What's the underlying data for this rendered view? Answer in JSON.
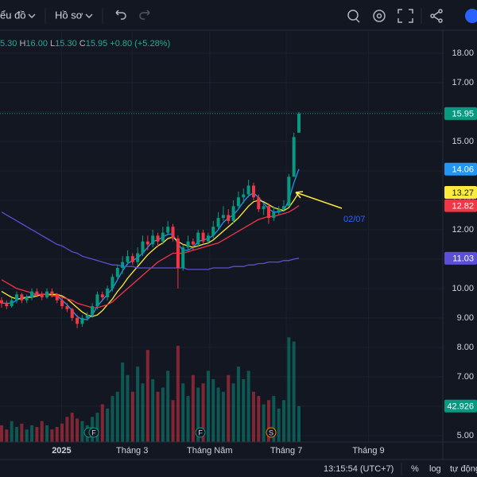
{
  "toolbar": {
    "chart": "ểu đồ",
    "profile": "Hồ sơ"
  },
  "legend": [
    "5.30",
    "H",
    "16.00",
    "L",
    "15.30",
    "C",
    "15.95",
    "+0.80 (+5.28%)"
  ],
  "footer": {
    "time": "13:15:54 (UTC+7)",
    "percent": "%",
    "log": "log",
    "auto": "tự động"
  },
  "chart_data": {
    "type": "candlestick",
    "ylim": [
      4.78,
      18.73
    ],
    "yticks": [
      {
        "value": 18,
        "label": "18.00"
      },
      {
        "value": 17,
        "label": "17.00"
      },
      {
        "value": 16,
        "label": "16.00"
      },
      {
        "value": 15,
        "label": "15.00"
      },
      {
        "value": 14,
        "label": "14.00"
      },
      {
        "value": 13,
        "label": "13.00"
      },
      {
        "value": 12,
        "label": "12.00"
      },
      {
        "value": 11,
        "label": "11.00"
      },
      {
        "value": 10,
        "label": "10.00"
      },
      {
        "value": 9,
        "label": "9.00"
      },
      {
        "value": 8,
        "label": "8.00"
      },
      {
        "value": 7,
        "label": "7.00"
      },
      {
        "value": 6,
        "label": "6.00"
      },
      {
        "value": 5,
        "label": "5.00"
      }
    ],
    "xticks": [
      {
        "value": 11.9,
        "label": "2025"
      },
      {
        "value": 25.9,
        "label": "Tháng 3"
      },
      {
        "value": 41.3,
        "label": "Tháng Năm"
      },
      {
        "value": 56.5,
        "label": "Tháng 7"
      },
      {
        "value": 72.8,
        "label": "Tháng 9"
      }
    ],
    "grid": true,
    "up_color": "#089981",
    "down_color": "#f23645",
    "candles": [
      [
        9.6,
        9.7,
        9.35,
        9.5
      ],
      [
        9.5,
        9.6,
        9.3,
        9.4
      ],
      [
        9.4,
        9.7,
        9.35,
        9.6
      ],
      [
        9.6,
        9.9,
        9.5,
        9.8
      ],
      [
        9.8,
        9.85,
        9.5,
        9.6
      ],
      [
        9.6,
        9.8,
        9.5,
        9.7
      ],
      [
        9.7,
        10.0,
        9.6,
        9.9
      ],
      [
        9.9,
        10.0,
        9.7,
        9.8
      ],
      [
        9.8,
        9.9,
        9.6,
        9.7
      ],
      [
        9.7,
        10.0,
        9.65,
        9.9
      ],
      [
        9.9,
        10.0,
        9.7,
        9.8
      ],
      [
        9.8,
        9.85,
        9.5,
        9.6
      ],
      [
        9.6,
        9.7,
        9.3,
        9.4
      ],
      [
        9.4,
        9.5,
        9.2,
        9.3
      ],
      [
        9.3,
        9.35,
        8.9,
        9.0
      ],
      [
        9.0,
        9.1,
        8.65,
        8.8
      ],
      [
        8.8,
        9.1,
        8.7,
        9.0
      ],
      [
        9.0,
        9.2,
        8.9,
        9.1
      ],
      [
        9.1,
        9.5,
        9.0,
        9.4
      ],
      [
        9.4,
        9.9,
        9.3,
        9.8
      ],
      [
        9.8,
        9.9,
        9.6,
        9.7
      ],
      [
        9.7,
        10.1,
        9.6,
        10.0
      ],
      [
        10.0,
        10.5,
        9.9,
        10.4
      ],
      [
        10.4,
        10.8,
        10.3,
        10.7
      ],
      [
        10.7,
        11.1,
        10.5,
        10.9
      ],
      [
        10.9,
        11.3,
        10.8,
        11.1
      ],
      [
        11.1,
        11.2,
        10.8,
        10.9
      ],
      [
        10.9,
        11.4,
        10.8,
        11.2
      ],
      [
        11.2,
        11.8,
        11.1,
        11.6
      ],
      [
        11.6,
        11.8,
        11.3,
        11.5
      ],
      [
        11.5,
        12.0,
        11.4,
        11.8
      ],
      [
        11.8,
        11.9,
        11.4,
        11.6
      ],
      [
        11.6,
        12.1,
        11.5,
        11.9
      ],
      [
        11.9,
        12.3,
        11.8,
        12.1
      ],
      [
        12.1,
        12.2,
        11.6,
        11.7
      ],
      [
        11.7,
        11.8,
        10.0,
        10.7
      ],
      [
        10.7,
        11.5,
        10.6,
        11.4
      ],
      [
        11.4,
        11.8,
        11.3,
        11.6
      ],
      [
        11.6,
        11.7,
        11.3,
        11.5
      ],
      [
        11.5,
        12.0,
        11.4,
        11.9
      ],
      [
        11.9,
        12.0,
        11.5,
        11.6
      ],
      [
        11.6,
        11.9,
        11.5,
        11.8
      ],
      [
        11.8,
        12.3,
        11.7,
        12.1
      ],
      [
        12.1,
        12.6,
        12.0,
        12.4
      ],
      [
        12.4,
        12.8,
        12.3,
        12.5
      ],
      [
        12.5,
        12.7,
        12.2,
        12.3
      ],
      [
        12.3,
        13.0,
        12.2,
        12.8
      ],
      [
        12.8,
        13.3,
        12.7,
        13.1
      ],
      [
        13.1,
        13.4,
        12.9,
        13.2
      ],
      [
        13.2,
        13.7,
        13.1,
        13.5
      ],
      [
        13.5,
        13.6,
        13.0,
        13.1
      ],
      [
        13.1,
        13.2,
        12.6,
        12.7
      ],
      [
        12.7,
        12.9,
        12.5,
        12.8
      ],
      [
        12.8,
        12.9,
        12.2,
        12.4
      ],
      [
        12.4,
        12.8,
        12.3,
        12.6
      ],
      [
        12.6,
        12.8,
        12.5,
        12.7
      ],
      [
        12.7,
        13.0,
        12.6,
        12.8
      ],
      [
        12.8,
        13.9,
        12.8,
        13.8
      ],
      [
        13.8,
        15.3,
        13.8,
        15.15
      ],
      [
        15.3,
        16.0,
        15.3,
        15.95
      ]
    ],
    "volume": {
      "ylim": [
        0,
        150
      ],
      "color": "#089981",
      "values": [
        20,
        15,
        25,
        18,
        22,
        15,
        20,
        18,
        25,
        20,
        15,
        18,
        22,
        30,
        35,
        28,
        25,
        20,
        30,
        35,
        45,
        40,
        55,
        60,
        95,
        80,
        60,
        90,
        70,
        110,
        75,
        60,
        65,
        85,
        50,
        115,
        70,
        55,
        80,
        65,
        70,
        85,
        75,
        65,
        60,
        80,
        70,
        90,
        75,
        85,
        60,
        55,
        45,
        50,
        55,
        40,
        50,
        125,
        120,
        42.926
      ]
    },
    "lines": [
      {
        "color": "#2196f3",
        "values": [
          9.5,
          9.5,
          9.5,
          9.6,
          9.7,
          9.7,
          9.75,
          9.8,
          9.8,
          9.8,
          9.8,
          9.75,
          9.6,
          9.45,
          9.25,
          9.05,
          8.95,
          8.95,
          9.1,
          9.4,
          9.6,
          9.8,
          10.0,
          10.3,
          10.6,
          10.85,
          10.95,
          11.05,
          11.2,
          11.4,
          11.6,
          11.65,
          11.75,
          11.85,
          11.85,
          11.5,
          11.3,
          11.3,
          11.4,
          11.6,
          11.65,
          11.7,
          11.8,
          12.0,
          12.25,
          12.4,
          12.5,
          12.7,
          12.95,
          13.15,
          13.25,
          13.1,
          12.9,
          12.7,
          12.6,
          12.6,
          12.65,
          13.0,
          13.6,
          14.06
        ]
      },
      {
        "color": "#ffeb3b",
        "label_text_color": "#131722",
        "values": [
          9.9,
          9.8,
          9.7,
          9.65,
          9.65,
          9.7,
          9.7,
          9.75,
          9.8,
          9.8,
          9.8,
          9.8,
          9.75,
          9.65,
          9.5,
          9.35,
          9.2,
          9.1,
          9.05,
          9.1,
          9.25,
          9.45,
          9.65,
          9.9,
          10.1,
          10.35,
          10.55,
          10.75,
          10.95,
          11.15,
          11.3,
          11.45,
          11.55,
          11.7,
          11.75,
          11.6,
          11.5,
          11.45,
          11.4,
          11.45,
          11.5,
          11.55,
          11.65,
          11.8,
          11.95,
          12.1,
          12.25,
          12.4,
          12.6,
          12.8,
          12.95,
          13.0,
          12.95,
          12.85,
          12.75,
          12.7,
          12.65,
          12.75,
          13.0,
          13.27
        ]
      },
      {
        "color": "#f23645",
        "values": [
          10.3,
          10.2,
          10.1,
          10.0,
          9.95,
          9.9,
          9.85,
          9.8,
          9.8,
          9.8,
          9.75,
          9.75,
          9.7,
          9.65,
          9.6,
          9.5,
          9.45,
          9.4,
          9.35,
          9.35,
          9.4,
          9.45,
          9.55,
          9.7,
          9.85,
          10.0,
          10.15,
          10.3,
          10.45,
          10.6,
          10.75,
          10.9,
          11.0,
          11.1,
          11.2,
          11.2,
          11.2,
          11.25,
          11.3,
          11.35,
          11.4,
          11.45,
          11.5,
          11.55,
          11.65,
          11.75,
          11.85,
          11.95,
          12.05,
          12.15,
          12.25,
          12.35,
          12.4,
          12.45,
          12.45,
          12.5,
          12.55,
          12.6,
          12.7,
          12.82
        ]
      },
      {
        "color": "#5b4fd6",
        "values": [
          12.6,
          12.5,
          12.4,
          12.3,
          12.2,
          12.1,
          12.0,
          11.9,
          11.8,
          11.7,
          11.6,
          11.5,
          11.45,
          11.35,
          11.25,
          11.2,
          11.1,
          11.05,
          11.0,
          10.95,
          10.9,
          10.85,
          10.8,
          10.8,
          10.75,
          10.75,
          10.75,
          10.7,
          10.7,
          10.7,
          10.7,
          10.7,
          10.7,
          10.7,
          10.7,
          10.7,
          10.7,
          10.65,
          10.65,
          10.65,
          10.65,
          10.65,
          10.7,
          10.7,
          10.7,
          10.7,
          10.75,
          10.75,
          10.75,
          10.8,
          10.8,
          10.85,
          10.85,
          10.9,
          10.9,
          10.9,
          10.95,
          10.95,
          11.0,
          11.03
        ]
      }
    ],
    "annotation": "02/07",
    "events": [
      "F",
      "F",
      "F",
      "S"
    ]
  }
}
